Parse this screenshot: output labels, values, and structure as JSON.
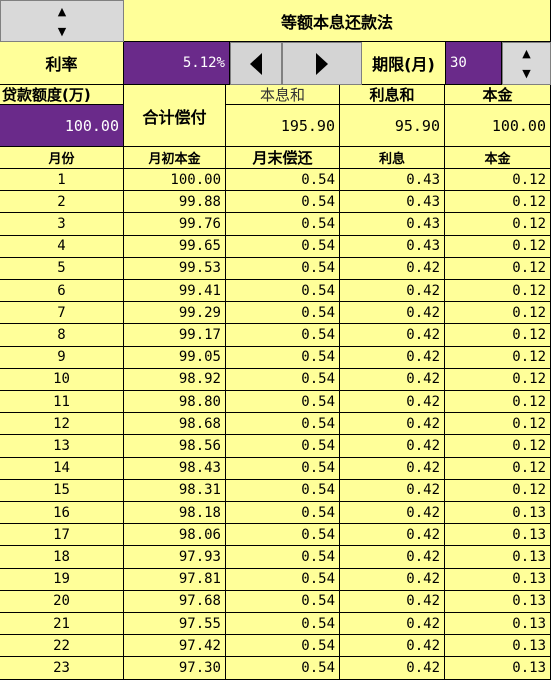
{
  "title": "等额本息还款法",
  "rate_label": "利率",
  "rate_value": "5.12%",
  "term_label": "期限(月)",
  "term_value": "30",
  "loan_label": "贷款额度(万)",
  "loan_value": "100.00",
  "total_label": "合计偿付",
  "summary": {
    "headers": [
      "本息和",
      "利息和",
      "本金"
    ],
    "values": [
      "195.90",
      "95.90",
      "100.00"
    ]
  },
  "table": {
    "headers": [
      "月份",
      "月初本金",
      "月末偿还",
      "利息",
      "本金"
    ],
    "rows": [
      [
        "1",
        "100.00",
        "0.54",
        "0.43",
        "0.12"
      ],
      [
        "2",
        "99.88",
        "0.54",
        "0.43",
        "0.12"
      ],
      [
        "3",
        "99.76",
        "0.54",
        "0.43",
        "0.12"
      ],
      [
        "4",
        "99.65",
        "0.54",
        "0.43",
        "0.12"
      ],
      [
        "5",
        "99.53",
        "0.54",
        "0.42",
        "0.12"
      ],
      [
        "6",
        "99.41",
        "0.54",
        "0.42",
        "0.12"
      ],
      [
        "7",
        "99.29",
        "0.54",
        "0.42",
        "0.12"
      ],
      [
        "8",
        "99.17",
        "0.54",
        "0.42",
        "0.12"
      ],
      [
        "9",
        "99.05",
        "0.54",
        "0.42",
        "0.12"
      ],
      [
        "10",
        "98.92",
        "0.54",
        "0.42",
        "0.12"
      ],
      [
        "11",
        "98.80",
        "0.54",
        "0.42",
        "0.12"
      ],
      [
        "12",
        "98.68",
        "0.54",
        "0.42",
        "0.12"
      ],
      [
        "13",
        "98.56",
        "0.54",
        "0.42",
        "0.12"
      ],
      [
        "14",
        "98.43",
        "0.54",
        "0.42",
        "0.12"
      ],
      [
        "15",
        "98.31",
        "0.54",
        "0.42",
        "0.12"
      ],
      [
        "16",
        "98.18",
        "0.54",
        "0.42",
        "0.13"
      ],
      [
        "17",
        "98.06",
        "0.54",
        "0.42",
        "0.13"
      ],
      [
        "18",
        "97.93",
        "0.54",
        "0.42",
        "0.13"
      ],
      [
        "19",
        "97.81",
        "0.54",
        "0.42",
        "0.13"
      ],
      [
        "20",
        "97.68",
        "0.54",
        "0.42",
        "0.13"
      ],
      [
        "21",
        "97.55",
        "0.54",
        "0.42",
        "0.13"
      ],
      [
        "22",
        "97.42",
        "0.54",
        "0.42",
        "0.13"
      ],
      [
        "23",
        "97.30",
        "0.54",
        "0.42",
        "0.13"
      ]
    ]
  },
  "colors": {
    "cell_background": "#ffff99",
    "input_background": "#6a2a8a",
    "control_background": "#d9d9d9"
  },
  "icons": {
    "spin_up": "chevron-up-icon",
    "spin_down": "chevron-down-icon",
    "scroll_left": "triangle-left-icon",
    "scroll_right": "triangle-right-icon"
  }
}
